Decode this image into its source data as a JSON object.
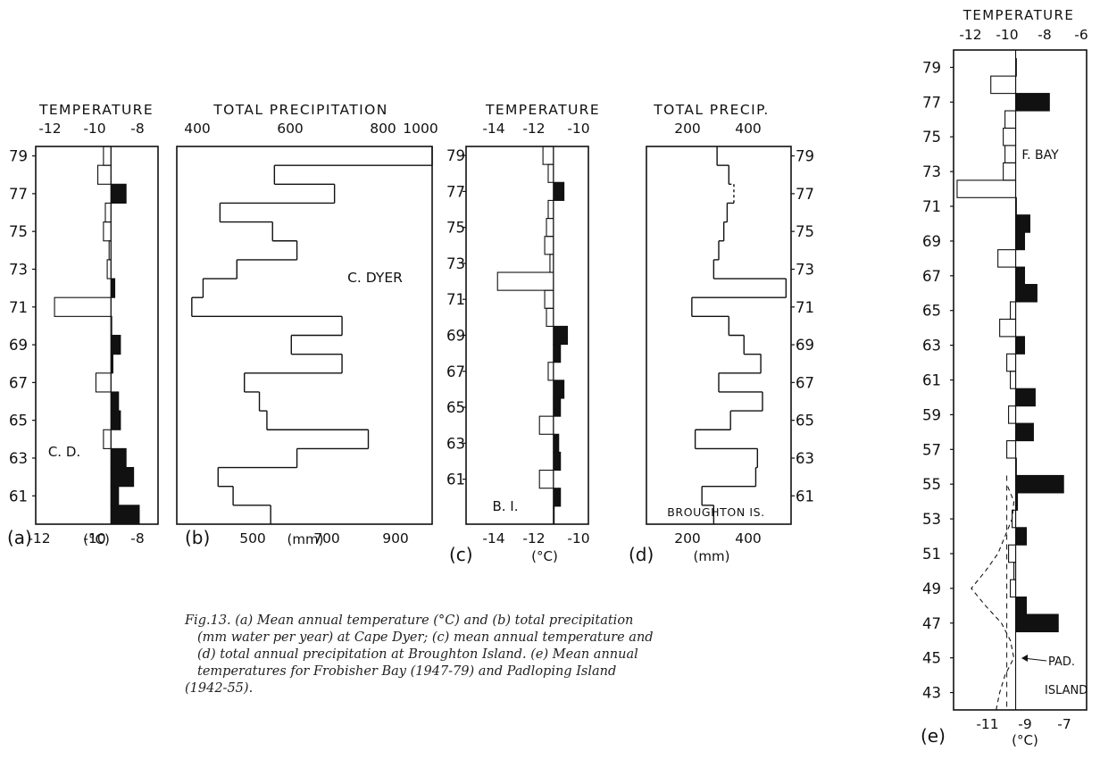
{
  "caption": [
    "Fig.13. (a) Mean annual temperature (°C) and (b) total precipitation",
    "(mm water per year) at Cape Dyer; (c) mean annual temperature and",
    "(d) total annual precipitation at Broughton Island. (e) Mean annual",
    "temperatures for Frobisher Bay (1947-79) and Padloping Island",
    "(1942-55)."
  ],
  "chart_data": [
    {
      "id": "a",
      "type": "bar",
      "orientation": "horizontal",
      "panel_letter": "(a)",
      "top_title": "TEMPERATURE",
      "unit": "(°C)",
      "station": "C. D.",
      "top_ticks": [
        "-12",
        "-10",
        "-8"
      ],
      "bottom_ticks": [
        "-12",
        "-10",
        "-8"
      ],
      "xlim": [
        -14,
        -7.5
      ],
      "mean": -10,
      "year_labels": [
        "79",
        "77",
        "75",
        "73",
        "71",
        "69",
        "67",
        "65",
        "63",
        "61"
      ],
      "years": [
        1960,
        1961,
        1962,
        1963,
        1964,
        1965,
        1966,
        1967,
        1968,
        1969,
        1970,
        1971,
        1972,
        1973,
        1974,
        1975,
        1976,
        1977,
        1978,
        1979
      ],
      "values": [
        -8.5,
        -9.6,
        -8.8,
        -9.2,
        -10.4,
        -9.5,
        -9.6,
        -10.8,
        -9.9,
        -9.5,
        -10,
        -13,
        -9.8,
        -10.2,
        -10.1,
        -10.4,
        -10.3,
        -9.2,
        -10.7,
        -10.4
      ],
      "black_fill": "values warmer than the mean"
    },
    {
      "id": "b",
      "type": "step",
      "orientation": "horizontal",
      "panel_letter": "(b)",
      "top_title": "TOTAL PRECIPITATION",
      "unit": "(mm)",
      "station": "C. DYER",
      "top_ticks": [
        "400",
        "600",
        "800",
        "1000"
      ],
      "bottom_ticks": [
        "500",
        "700",
        "900"
      ],
      "xlim": [
        400,
        1080
      ],
      "years": [
        1960,
        1961,
        1962,
        1963,
        1964,
        1965,
        1966,
        1967,
        1968,
        1969,
        1970,
        1971,
        1972,
        1973,
        1974,
        1975,
        1976,
        1977,
        1978,
        1979
      ],
      "values": [
        650,
        550,
        510,
        720,
        910,
        640,
        620,
        580,
        840,
        705,
        840,
        440,
        470,
        560,
        720,
        655,
        515,
        820,
        660,
        1080
      ]
    },
    {
      "id": "c",
      "type": "bar",
      "orientation": "horizontal",
      "panel_letter": "(c)",
      "top_title": "TEMPERATURE",
      "unit": "(°C)",
      "station": "B. I.",
      "top_ticks": [
        "-14",
        "-12",
        "-10"
      ],
      "bottom_ticks": [
        "-14",
        "-12",
        "-10"
      ],
      "xlim": [
        -16,
        -9
      ],
      "mean": -11,
      "year_labels": [
        "79",
        "77",
        "75",
        "73",
        "71",
        "69",
        "67",
        "65",
        "63",
        "61"
      ],
      "years": [
        1959,
        1960,
        1961,
        1962,
        1963,
        1964,
        1965,
        1966,
        1967,
        1968,
        1969,
        1970,
        1971,
        1972,
        1973,
        1974,
        1975,
        1976,
        1977,
        1978,
        1979
      ],
      "values": [
        -11,
        -10.6,
        -11.8,
        -10.6,
        -10.7,
        -11.8,
        -10.6,
        -10.4,
        -11.3,
        -10.6,
        -10.2,
        -11.4,
        -11.5,
        -14.2,
        -11.2,
        -11.5,
        -11.4,
        -11.3,
        -10.4,
        -11.3,
        -11.6
      ],
      "black_fill": "values warmer than the mean"
    },
    {
      "id": "d",
      "type": "step",
      "orientation": "horizontal",
      "panel_letter": "(d)",
      "top_title": "TOTAL PRECIP.",
      "unit": "(mm)",
      "station": "BROUGHTON IS.",
      "top_ticks": [
        "200",
        "400"
      ],
      "bottom_ticks": [
        "200",
        "400"
      ],
      "xlim": [
        40,
        470
      ],
      "years": [
        1960,
        1961,
        1962,
        1963,
        1964,
        1965,
        1966,
        1967,
        1968,
        1969,
        1970,
        1971,
        1972,
        1973,
        1974,
        1975,
        1976,
        1977,
        1978,
        1979
      ],
      "values": [
        240,
        205,
        365,
        370,
        185,
        290,
        385,
        255,
        380,
        330,
        285,
        175,
        455,
        240,
        255,
        270,
        280,
        300,
        285,
        250
      ],
      "dashed_years": [
        1977
      ]
    },
    {
      "id": "e",
      "type": "bar",
      "orientation": "horizontal",
      "panel_letter": "(e)",
      "top_title": "TEMPERATURE",
      "unit": "(°C)",
      "station_frobisher": "F. BAY",
      "station_padloping": [
        "PAD.",
        "ISLAND"
      ],
      "top_ticks": [
        "-12",
        "-10",
        "-8",
        "-6"
      ],
      "bottom_ticks": [
        "-11",
        "-9",
        "-7"
      ],
      "xlim": [
        -13,
        -5.5
      ],
      "mean": -9.5,
      "padloping_mean": -10,
      "year_labels": [
        "79",
        "77",
        "75",
        "73",
        "71",
        "69",
        "67",
        "65",
        "63",
        "61",
        "59",
        "57",
        "55",
        "53",
        "51",
        "49",
        "47",
        "45",
        "43"
      ],
      "frobisher": {
        "years": [
          1947,
          1948,
          1949,
          1950,
          1951,
          1952,
          1953,
          1954,
          1955,
          1956,
          1957,
          1958,
          1959,
          1960,
          1961,
          1962,
          1963,
          1964,
          1965,
          1966,
          1967,
          1968,
          1969,
          1970,
          1971,
          1972,
          1973,
          1974,
          1975,
          1976,
          1977,
          1978,
          1979
        ],
        "values": [
          -7.1,
          -8.9,
          -9.8,
          -9.6,
          -9.9,
          -8.9,
          -9.7,
          -9.4,
          -6.8,
          -9.5,
          -10.0,
          -8.5,
          -9.9,
          -8.4,
          -9.8,
          -10.0,
          -9.0,
          -10.4,
          -9.8,
          -8.3,
          -9.0,
          -10.5,
          -9.0,
          -8.7,
          -9.5,
          -12.8,
          -10.2,
          -10.1,
          -10.2,
          -10.1,
          -7.6,
          -10.9,
          -9.5
        ],
        "black_fill": "values warmer than the mean"
      },
      "padloping": {
        "years": [
          1942,
          1943,
          1944,
          1945,
          1946,
          1947,
          1948,
          1949,
          1950,
          1951,
          1952,
          1953,
          1954,
          1955
        ],
        "values": [
          -10.6,
          -10.4,
          -10.1,
          -9.6,
          -9.8,
          -10.3,
          -11.2,
          -12.0,
          -11.2,
          -10.5,
          -10.1,
          -9.7,
          -9.6,
          -10.0
        ],
        "plotted_as": "dashed"
      }
    }
  ]
}
